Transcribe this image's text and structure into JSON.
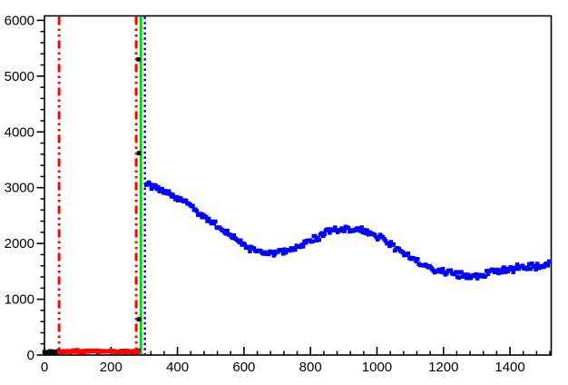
{
  "figure": {
    "background": "#ffffff",
    "frame_color": "#000000"
  },
  "chart_data": {
    "type": "scatter",
    "title": "",
    "xlabel": "",
    "ylabel": "",
    "grid": false,
    "legend": "none",
    "marker": "filled-square",
    "xlim": [
      0,
      1524
    ],
    "ylim": [
      0,
      6080
    ],
    "x_major_ticks": [
      0,
      200,
      400,
      600,
      800,
      1000,
      1200,
      1400
    ],
    "x_minor_step": 40,
    "y_major_ticks": [
      0,
      1000,
      2000,
      3000,
      4000,
      5000,
      6000
    ],
    "y_minor_step": 200,
    "series": [
      {
        "name": "black-series",
        "color": "#000000",
        "band_halfwidth": 20,
        "step": 3,
        "anchors": [
          [
            0,
            58
          ],
          [
            14,
            58
          ],
          [
            28,
            58
          ],
          [
            42,
            58
          ]
        ],
        "extra_points": [
          [
            283,
            5300
          ],
          [
            284,
            3620
          ],
          [
            284,
            640
          ],
          [
            283,
            80
          ],
          [
            281,
            60
          ]
        ]
      },
      {
        "name": "red-series",
        "color": "#ff0000",
        "band_halfwidth": 24,
        "step": 3,
        "anchors": [
          [
            45,
            58
          ],
          [
            70,
            60
          ],
          [
            95,
            74
          ],
          [
            120,
            60
          ],
          [
            145,
            72
          ],
          [
            170,
            62
          ],
          [
            195,
            68
          ],
          [
            220,
            60
          ],
          [
            245,
            64
          ],
          [
            268,
            58
          ],
          [
            282,
            62
          ]
        ],
        "extra_points": []
      },
      {
        "name": "blue-series",
        "color": "#0000ff",
        "band_halfwidth": 70,
        "step": 4,
        "anchors": [
          [
            306,
            3080
          ],
          [
            320,
            3040
          ],
          [
            340,
            3000
          ],
          [
            360,
            2940
          ],
          [
            380,
            2880
          ],
          [
            400,
            2820
          ],
          [
            420,
            2750
          ],
          [
            440,
            2670
          ],
          [
            460,
            2580
          ],
          [
            480,
            2480
          ],
          [
            500,
            2390
          ],
          [
            520,
            2300
          ],
          [
            540,
            2220
          ],
          [
            560,
            2140
          ],
          [
            580,
            2060
          ],
          [
            600,
            1980
          ],
          [
            620,
            1915
          ],
          [
            640,
            1870
          ],
          [
            660,
            1845
          ],
          [
            680,
            1830
          ],
          [
            700,
            1835
          ],
          [
            720,
            1860
          ],
          [
            740,
            1890
          ],
          [
            760,
            1935
          ],
          [
            780,
            1990
          ],
          [
            800,
            2050
          ],
          [
            820,
            2110
          ],
          [
            840,
            2165
          ],
          [
            860,
            2210
          ],
          [
            880,
            2240
          ],
          [
            900,
            2255
          ],
          [
            920,
            2260
          ],
          [
            940,
            2245
          ],
          [
            960,
            2215
          ],
          [
            980,
            2175
          ],
          [
            1000,
            2120
          ],
          [
            1020,
            2055
          ],
          [
            1040,
            1985
          ],
          [
            1060,
            1910
          ],
          [
            1080,
            1835
          ],
          [
            1100,
            1760
          ],
          [
            1120,
            1690
          ],
          [
            1140,
            1625
          ],
          [
            1160,
            1570
          ],
          [
            1180,
            1525
          ],
          [
            1200,
            1485
          ],
          [
            1220,
            1455
          ],
          [
            1240,
            1435
          ],
          [
            1260,
            1425
          ],
          [
            1280,
            1425
          ],
          [
            1300,
            1435
          ],
          [
            1320,
            1455
          ],
          [
            1340,
            1478
          ],
          [
            1360,
            1500
          ],
          [
            1380,
            1522
          ],
          [
            1400,
            1542
          ],
          [
            1420,
            1560
          ],
          [
            1440,
            1576
          ],
          [
            1460,
            1590
          ],
          [
            1480,
            1600
          ],
          [
            1500,
            1608
          ],
          [
            1518,
            1615
          ]
        ],
        "extra_points": []
      }
    ],
    "vlines": [
      {
        "name": "red-cut-line-low",
        "x": 44,
        "color": "#ff0000",
        "style": "dashdotdot",
        "width": 3
      },
      {
        "name": "red-cut-line-high",
        "x": 276,
        "color": "#ff0000",
        "style": "dashdotdot",
        "width": 3
      },
      {
        "name": "green-marker-line",
        "x": 290,
        "color": "#00dd00",
        "style": "solid",
        "width": 3
      },
      {
        "name": "blue-marker-line",
        "x": 302,
        "color": "#0000ff",
        "style": "dotted",
        "width": 2.5
      }
    ]
  }
}
